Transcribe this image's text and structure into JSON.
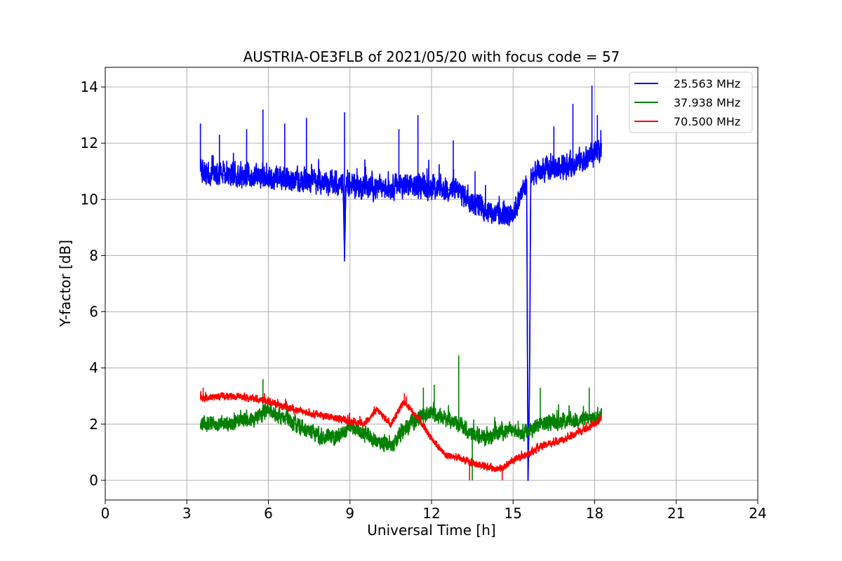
{
  "chart_data": {
    "type": "line",
    "title": "AUSTRIA-OE3FLB of 2021/05/20 with focus code = 57",
    "xlabel": "Universal Time [h]",
    "ylabel": "Y-factor [dB]",
    "xlim": [
      0,
      24
    ],
    "ylim": [
      -0.7,
      14.7
    ],
    "xticks": [
      0,
      3,
      6,
      9,
      12,
      15,
      18,
      21,
      24
    ],
    "xtick_labels": [
      "0",
      "3",
      "6",
      "9",
      "12",
      "15",
      "18",
      "21",
      "24"
    ],
    "yticks": [
      0,
      2,
      4,
      6,
      8,
      10,
      12,
      14
    ],
    "ytick_labels": [
      "0",
      "2",
      "4",
      "6",
      "8",
      "10",
      "12",
      "14"
    ],
    "grid": true,
    "legend_position": "top-right",
    "series": [
      {
        "name": "25.563 MHz",
        "color": "#0000ff",
        "x": [
          3.5,
          4,
          5,
          6,
          7,
          8,
          8.75,
          8.8,
          8.85,
          9,
          10,
          11,
          12,
          13,
          13.5,
          14,
          14.5,
          15,
          15.5,
          15.55,
          15.6,
          15.65,
          16,
          17,
          18,
          18.25
        ],
        "y": [
          11.0,
          10.9,
          10.8,
          10.8,
          10.7,
          10.6,
          10.5,
          7.95,
          10.5,
          10.5,
          10.4,
          10.5,
          10.4,
          10.3,
          9.9,
          9.6,
          9.4,
          9.5,
          10.6,
          0.0,
          3.0,
          10.8,
          11.0,
          11.2,
          11.6,
          11.7
        ],
        "noise": 0.55,
        "spikes": [
          [
            3.5,
            12.7
          ],
          [
            4.2,
            12.3
          ],
          [
            5.2,
            12.5
          ],
          [
            5.8,
            13.2
          ],
          [
            6.6,
            12.7
          ],
          [
            7.4,
            12.9
          ],
          [
            8.8,
            13.1
          ],
          [
            10.8,
            12.5
          ],
          [
            11.5,
            13.0
          ],
          [
            12.8,
            12.1
          ],
          [
            13.6,
            11.0
          ],
          [
            16.5,
            12.6
          ],
          [
            17.2,
            13.4
          ],
          [
            17.9,
            14.05
          ],
          [
            18.1,
            13.0
          ]
        ]
      },
      {
        "name": "37.938 MHz",
        "color": "#008000",
        "x": [
          3.5,
          4.5,
          5.5,
          6,
          7,
          8,
          8.7,
          9,
          10,
          10.5,
          11,
          11.5,
          12,
          13,
          13.5,
          14,
          14.5,
          15,
          15.5,
          16,
          17,
          18,
          18.25
        ],
        "y": [
          2.0,
          2.0,
          2.2,
          2.5,
          2.0,
          1.5,
          1.6,
          1.9,
          1.4,
          1.2,
          1.8,
          2.2,
          2.4,
          2.0,
          1.6,
          1.5,
          1.7,
          1.8,
          1.7,
          2.0,
          2.1,
          2.2,
          2.4
        ],
        "noise": 0.35,
        "spikes": [
          [
            5.8,
            3.6
          ],
          [
            11.7,
            3.3
          ],
          [
            12.1,
            3.4
          ],
          [
            13.0,
            4.45
          ],
          [
            13.5,
            0.0
          ],
          [
            16.0,
            3.3
          ],
          [
            17.8,
            3.3
          ]
        ]
      },
      {
        "name": "70.500 MHz",
        "color": "#ff0000",
        "x": [
          3.5,
          4.5,
          5.5,
          6,
          7,
          8,
          9,
          9.5,
          10,
          10.5,
          11,
          11.5,
          12,
          12.5,
          13,
          13.5,
          14,
          14.5,
          15,
          15.5,
          16,
          17,
          18,
          18.25
        ],
        "y": [
          2.9,
          3.0,
          2.9,
          2.8,
          2.5,
          2.3,
          2.1,
          2.0,
          2.5,
          2.0,
          2.8,
          2.2,
          1.5,
          0.9,
          0.8,
          0.6,
          0.5,
          0.4,
          0.7,
          0.9,
          1.2,
          1.5,
          2.0,
          2.2
        ],
        "noise": 0.16,
        "spikes": [
          [
            3.6,
            3.3
          ],
          [
            11.0,
            3.1
          ],
          [
            13.4,
            0.0
          ],
          [
            14.6,
            0.0
          ]
        ]
      }
    ]
  }
}
